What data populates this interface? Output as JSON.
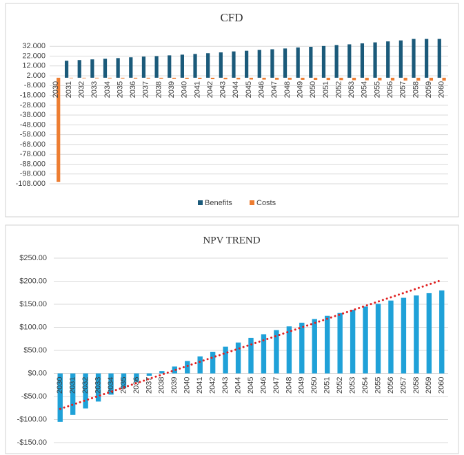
{
  "chart_data": [
    {
      "type": "bar",
      "title": "CFD",
      "categories": [
        "2030",
        "2031",
        "2032",
        "2033",
        "2034",
        "2035",
        "2036",
        "2037",
        "2038",
        "2039",
        "2040",
        "2041",
        "2042",
        "2043",
        "2044",
        "2045",
        "2046",
        "2047",
        "2048",
        "2049",
        "2050",
        "2051",
        "2052",
        "2053",
        "2054",
        "2055",
        "2056",
        "2057",
        "2058",
        "2059",
        "2060"
      ],
      "series": [
        {
          "name": "Benefits",
          "color": "#1b5a7a",
          "values": [
            0,
            17.3,
            18,
            18.7,
            19.3,
            20,
            20.8,
            21.5,
            22,
            22.8,
            23.5,
            24.2,
            25,
            25.8,
            26.8,
            27.5,
            28.3,
            29,
            29.8,
            30.8,
            31.5,
            32.3,
            33.3,
            34,
            35,
            36,
            37,
            38,
            39.5,
            39.5,
            39.5
          ]
        },
        {
          "name": "Costs",
          "color": "#ed7d31",
          "values": [
            -106,
            -0.5,
            -0.6,
            -0.7,
            -0.8,
            -0.9,
            -1,
            -1,
            -1.1,
            -1.2,
            -1.3,
            -1.4,
            -1.5,
            -1.6,
            -1.7,
            -1.8,
            -1.9,
            -2,
            -2,
            -2.1,
            -2.2,
            -2.3,
            -2.4,
            -2.5,
            -2.6,
            -2.7,
            -2.8,
            -2.9,
            -3,
            -3,
            -3
          ]
        }
      ],
      "ylim": [
        -108,
        42
      ],
      "yticks": [
        {
          "value": 32,
          "label": "32.000"
        },
        {
          "value": 22,
          "label": "22.000"
        },
        {
          "value": 12,
          "label": "12.000"
        },
        {
          "value": 2,
          "label": "2.000"
        },
        {
          "value": -8,
          "label": "-8.000"
        },
        {
          "value": -18,
          "label": "-18.000"
        },
        {
          "value": -28,
          "label": "-28.000"
        },
        {
          "value": -38,
          "label": "-38.000"
        },
        {
          "value": -48,
          "label": "-48.000"
        },
        {
          "value": -58,
          "label": "-58.000"
        },
        {
          "value": -68,
          "label": "-68.000"
        },
        {
          "value": -78,
          "label": "-78.000"
        },
        {
          "value": -88,
          "label": "-88.000"
        },
        {
          "value": -98,
          "label": "-98.000"
        },
        {
          "value": -108,
          "label": "-108.000"
        }
      ],
      "grid": true,
      "legend": "bottom"
    },
    {
      "type": "bar",
      "title": "NPV TREND",
      "categories": [
        "2030",
        "2031",
        "2032",
        "2033",
        "2034",
        "2035",
        "2036",
        "2037",
        "2038",
        "2039",
        "2040",
        "2041",
        "2042",
        "2043",
        "2044",
        "2045",
        "2046",
        "2047",
        "2048",
        "2049",
        "2050",
        "2051",
        "2052",
        "2053",
        "2054",
        "2055",
        "2056",
        "2057",
        "2058",
        "2059",
        "2060"
      ],
      "values": [
        -105,
        -90,
        -76,
        -61,
        -46,
        -32,
        -18,
        -5,
        5,
        15,
        27,
        37,
        47,
        58,
        67,
        77,
        85,
        94,
        102,
        110,
        118,
        125,
        131,
        138,
        145,
        151,
        158,
        164,
        169,
        174,
        180
      ],
      "color": "#1fa1d8",
      "trendline": true,
      "trend_color": "#e02020",
      "ylim": [
        -150,
        250
      ],
      "yticks": [
        {
          "value": 250,
          "label": "$250.00"
        },
        {
          "value": 200,
          "label": "$200.00"
        },
        {
          "value": 150,
          "label": "$150.00"
        },
        {
          "value": 100,
          "label": "$100.00"
        },
        {
          "value": 50,
          "label": "$50.00"
        },
        {
          "value": 0,
          "label": "$0.00"
        },
        {
          "value": -50,
          "label": "-$50.00"
        },
        {
          "value": -100,
          "label": "-$100.00"
        },
        {
          "value": -150,
          "label": "-$150.00"
        }
      ],
      "grid": true
    }
  ]
}
